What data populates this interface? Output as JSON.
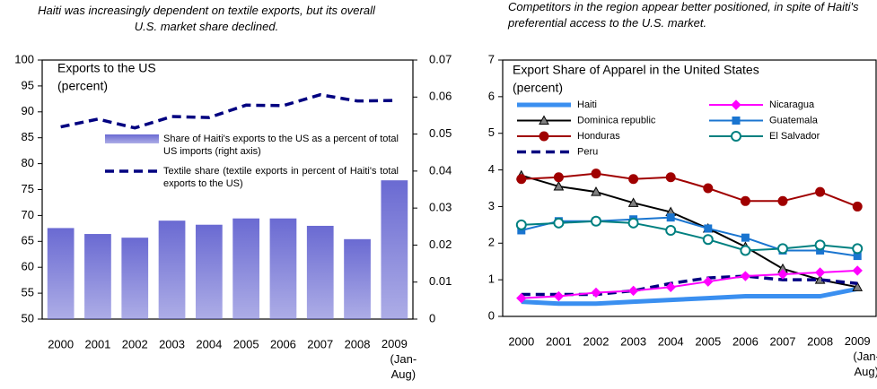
{
  "chart_data": [
    {
      "type": "bar",
      "caption": "Haiti  was increasingly dependent on textile exports, but its overall U.S. market share declined.",
      "title": "Exports to the US",
      "subtitle": "(percent)",
      "categories": [
        "2000",
        "2001",
        "2002",
        "2003",
        "2004",
        "2005",
        "2006",
        "2007",
        "2008",
        "2009 (Jan-Aug)"
      ],
      "ylim": [
        50,
        100
      ],
      "yticks": [
        50,
        55,
        60,
        65,
        70,
        75,
        80,
        85,
        90,
        95,
        100
      ],
      "y2lim": [
        0,
        0.07
      ],
      "y2ticks": [
        0,
        0.01,
        0.02,
        0.03,
        0.04,
        0.05,
        0.06,
        0.07
      ],
      "legend": "upper-center",
      "series": [
        {
          "name": "Share of Haiti's exports to the US as a percent of total US imports (right axis)",
          "type": "bar",
          "axis": "y2",
          "color": "#6a6ad2",
          "values": [
            0.0246,
            0.023,
            0.022,
            0.0266,
            0.0255,
            0.0272,
            0.0272,
            0.0252,
            0.0216,
            0.0375
          ]
        },
        {
          "name": "Textile share (textile exports in percent of Haiti's total exports to the US)",
          "type": "line",
          "color": "#000080",
          "line_style": "dashed",
          "values": [
            87.1,
            88.6,
            86.9,
            89.1,
            88.9,
            91.3,
            91.2,
            93.3,
            92.1,
            92.2
          ]
        }
      ]
    },
    {
      "type": "line",
      "caption": "Competitors in the region appear better positioned, in spite of Haiti's preferential access to the U.S. market.",
      "title": "Export Share of Apparel in the United States",
      "subtitle": "(percent)",
      "categories": [
        "2000",
        "2001",
        "2002",
        "2003",
        "2004",
        "2005",
        "2006",
        "2007",
        "2008",
        "2009 (Jan-Aug)"
      ],
      "ylim": [
        0,
        7
      ],
      "yticks": [
        0,
        1,
        2,
        3,
        4,
        5,
        6,
        7
      ],
      "legend": "upper-left",
      "series": [
        {
          "name": "Haiti",
          "color": "#3a8ff0",
          "line_style": "thick",
          "marker": "none",
          "values": [
            0.4,
            0.35,
            0.35,
            0.4,
            0.45,
            0.5,
            0.55,
            0.55,
            0.55,
            0.75
          ]
        },
        {
          "name": "Dominica republic",
          "color": "#808080",
          "line_style": "solid",
          "marker": "triangle",
          "values": [
            3.85,
            3.55,
            3.4,
            3.1,
            2.85,
            2.4,
            1.9,
            1.3,
            1.0,
            0.8
          ]
        },
        {
          "name": "Honduras",
          "color": "#a00000",
          "line_style": "solid",
          "marker": "circle",
          "values": [
            3.75,
            3.8,
            3.9,
            3.75,
            3.8,
            3.5,
            3.15,
            3.15,
            3.4,
            3.0
          ]
        },
        {
          "name": "Peru",
          "color": "#000080",
          "line_style": "dashed",
          "marker": "none",
          "values": [
            0.6,
            0.6,
            0.6,
            0.7,
            0.9,
            1.05,
            1.1,
            1.0,
            1.0,
            0.9
          ]
        },
        {
          "name": "Nicaragua",
          "color": "#ff00ff",
          "line_style": "solid",
          "marker": "diamond",
          "values": [
            0.5,
            0.55,
            0.65,
            0.7,
            0.8,
            0.95,
            1.1,
            1.15,
            1.2,
            1.25
          ]
        },
        {
          "name": "Guatemala",
          "color": "#1a75d0",
          "line_style": "solid",
          "marker": "square",
          "values": [
            2.35,
            2.6,
            2.6,
            2.65,
            2.7,
            2.4,
            2.15,
            1.8,
            1.8,
            1.65
          ]
        },
        {
          "name": "El Salvador",
          "color": "#008080",
          "line_style": "solid",
          "marker": "open-circle",
          "values": [
            2.5,
            2.55,
            2.6,
            2.55,
            2.35,
            2.1,
            1.8,
            1.85,
            1.95,
            1.85
          ]
        }
      ]
    }
  ]
}
